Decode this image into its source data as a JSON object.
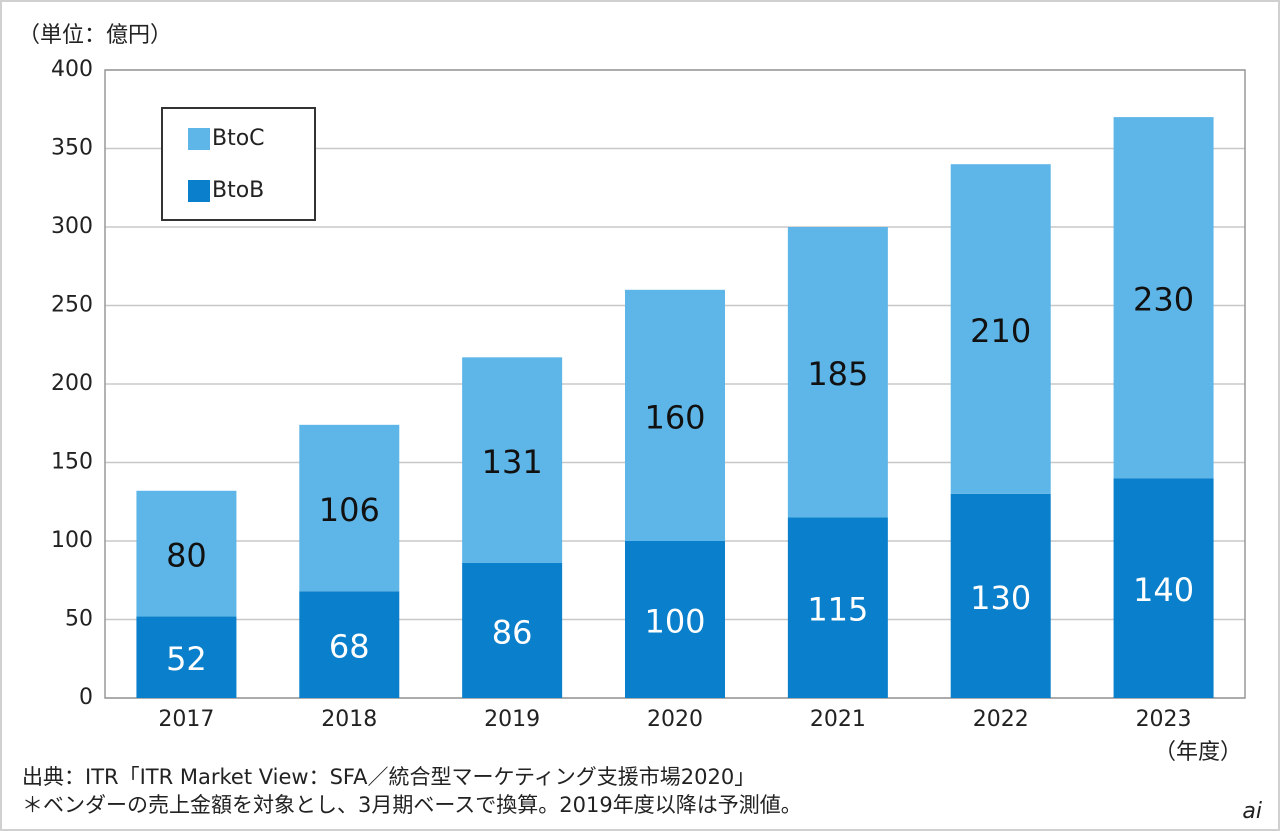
{
  "chart_data": {
    "type": "stacked_bar",
    "unit_label": "（単位：億円）",
    "x_unit_label": "（年度）",
    "categories": [
      "2017",
      "2018",
      "2019",
      "2020",
      "2021",
      "2022",
      "2023"
    ],
    "series": [
      {
        "name": "BtoB",
        "color": "#0a7fcb",
        "label_color": "#ffffff",
        "values": [
          52,
          68,
          86,
          100,
          115,
          130,
          140
        ]
      },
      {
        "name": "BtoC",
        "color": "#5eb6e8",
        "label_color": "#111111",
        "values": [
          80,
          106,
          131,
          160,
          185,
          210,
          230
        ]
      }
    ],
    "ylim": [
      0,
      400
    ],
    "yticks": [
      0,
      50,
      100,
      150,
      200,
      250,
      300,
      350,
      400
    ],
    "grid": true,
    "legend": "upper-left",
    "notes": [
      "出典：ITR「ITR Market View：SFA／統合型マーケティング支援市場2020」",
      "＊ベンダーの売上金額を対象とし、3月期ベースで換算。2019年度以降は予測値。"
    ],
    "watermark": "ai"
  }
}
